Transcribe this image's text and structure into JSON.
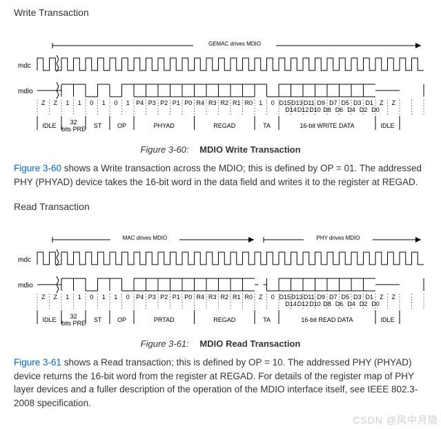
{
  "write": {
    "section_title": "Write Transaction",
    "top_bar_label": "GEMAC drives MDIO",
    "signals": {
      "mdc": "mdc",
      "mdio": "mdio"
    },
    "bit_symbols_row1": [
      "Z",
      "Z",
      "1",
      "1",
      "0",
      "1",
      "0",
      "1",
      "P4",
      "P3",
      "P2",
      "P1",
      "P0",
      "R4",
      "R3",
      "R2",
      "R1",
      "R0",
      "1",
      "0",
      "D15",
      "D13",
      "D11",
      "D9",
      "D7",
      "D5",
      "D3",
      "D1",
      "Z",
      "Z"
    ],
    "bit_symbols_row2": [
      "D14",
      "D12",
      "D10",
      "D8",
      "D6",
      "D4",
      "D2",
      "D0"
    ],
    "groups": [
      "IDLE",
      "32 bits PRE",
      "ST",
      "OP",
      "PHYAD",
      "REGAD",
      "TA",
      "16-bit WRITE DATA",
      "IDLE"
    ],
    "caption_label": "Figure 3-60:",
    "caption_title": "MDIO Write Transaction",
    "paragraph_parts": {
      "link": "Figure 3-60",
      "rest": " shows a Write transaction across the MDIO; this is defined by OP = 01. The addressed PHY (PHYAD) device takes the 16-bit word in the data field and writes it to the register at REGAD."
    }
  },
  "read": {
    "section_title": "Read Transaction",
    "top_bar_left": "MAC drives MDIO",
    "top_bar_right": "PHY drives MDIO",
    "signals": {
      "mdc": "mdc",
      "mdio": "mdio"
    },
    "bit_symbols_row1": [
      "Z",
      "Z",
      "1",
      "1",
      "0",
      "1",
      "1",
      "0",
      "P4",
      "P3",
      "P2",
      "P1",
      "P0",
      "R4",
      "R3",
      "R2",
      "R1",
      "R0",
      "Z",
      "0",
      "D15",
      "D13",
      "D11",
      "D9",
      "D7",
      "D5",
      "D3",
      "D1",
      "Z",
      "Z"
    ],
    "bit_symbols_row2": [
      "D14",
      "D12",
      "D10",
      "D8",
      "D6",
      "D4",
      "D2",
      "D0"
    ],
    "groups": [
      "IDLE",
      "32 bits PRE",
      "ST",
      "OP",
      "PRTAD",
      "REGAD",
      "TA",
      "16-bit READ DATA",
      "IDLE"
    ],
    "caption_label": "Figure 3-61:",
    "caption_title": "MDIO Read Transaction",
    "paragraph_parts": {
      "link": "Figure 3-61",
      "rest": " shows a Read transaction; this is defined by OP = 10. The addressed PHY (PHYAD) device returns the 16-bit word from the register at REGAD. For details of the register map of PHY layer devices and a fuller description of the operation of the MDIO interface itself, see IEEE 802.3-2008 specification."
    }
  },
  "style": {
    "link_color": "#0066cc",
    "text_color": "#333333",
    "diagram_stroke": "#000000",
    "break_fill": "#ffffff"
  },
  "watermark": "CSDN @风中月隐"
}
